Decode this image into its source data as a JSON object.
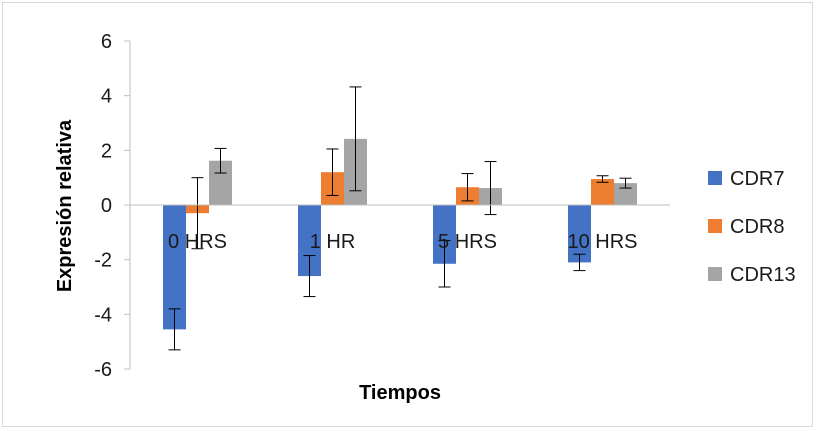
{
  "chart_data": {
    "type": "bar",
    "title": "",
    "xlabel": "Tiempos",
    "ylabel": "Expresión relativa",
    "categories": [
      "0 HRS",
      "1 HR",
      "5 HRS",
      "10 HRS"
    ],
    "ylim": [
      -6,
      6
    ],
    "yticks": [
      -6,
      -4,
      -2,
      0,
      2,
      4,
      6
    ],
    "grid": false,
    "legend_position": "right",
    "series": [
      {
        "name": "CDR7",
        "color": "#4472C4",
        "values": [
          -4.55,
          -2.6,
          -2.15,
          -2.1
        ],
        "errors": [
          0.75,
          0.75,
          0.85,
          0.3
        ]
      },
      {
        "name": "CDR8",
        "color": "#ED7D31",
        "values": [
          -0.3,
          1.2,
          0.65,
          0.95
        ],
        "errors": [
          1.3,
          0.85,
          0.5,
          0.12
        ]
      },
      {
        "name": "CDR13",
        "color": "#A5A5A5",
        "values": [
          1.62,
          2.42,
          0.62,
          0.8
        ],
        "errors": [
          0.45,
          1.9,
          0.97,
          0.18
        ]
      }
    ]
  }
}
